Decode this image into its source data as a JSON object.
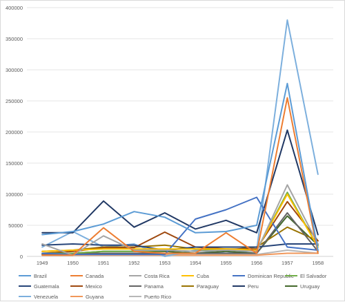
{
  "chart_data": {
    "type": "line",
    "title": "",
    "xlabel": "",
    "ylabel": "",
    "x": [
      "1949",
      "1950",
      "1951",
      "1952",
      "1953",
      "1954",
      "1955",
      "1956",
      "1957",
      "1958"
    ],
    "ylim": [
      0,
      400000
    ],
    "y_ticks": [
      "0",
      "50000",
      "100000",
      "150000",
      "200000",
      "250000",
      "300000",
      "350000",
      "400000"
    ],
    "grid": true,
    "legend_position": "bottom",
    "series": [
      {
        "name": "Brazil",
        "color": "#5b9bd5",
        "values": [
          35000,
          40000,
          52000,
          72000,
          63000,
          38000,
          40000,
          50000,
          278000,
          10000
        ]
      },
      {
        "name": "Canada",
        "color": "#ed7d31",
        "values": [
          2000,
          2000,
          46000,
          8000,
          5000,
          5000,
          38000,
          5000,
          255000,
          5000
        ]
      },
      {
        "name": "Costa Rica",
        "color": "#a5a5a5",
        "values": [
          20000,
          2000,
          33000,
          10000,
          10000,
          8000,
          10000,
          8000,
          115000,
          20000
        ]
      },
      {
        "name": "Cuba",
        "color": "#ffc000",
        "values": [
          8000,
          10000,
          12000,
          12000,
          12000,
          12000,
          12000,
          10000,
          100000,
          15000
        ]
      },
      {
        "name": "Dominican Republic",
        "color": "#4472c4",
        "values": [
          5000,
          3000,
          3000,
          3000,
          3000,
          60000,
          75000,
          95000,
          15000,
          10000
        ]
      },
      {
        "name": "El Salvador",
        "color": "#70ad47",
        "values": [
          5000,
          5000,
          8000,
          8000,
          10000,
          8000,
          12000,
          10000,
          103000,
          15000
        ]
      },
      {
        "name": "Guatemala",
        "color": "#264478",
        "values": [
          18000,
          20000,
          18000,
          18000,
          10000,
          15000,
          15000,
          15000,
          20000,
          20000
        ]
      },
      {
        "name": "Mexico",
        "color": "#9e480e",
        "values": [
          5000,
          8000,
          14000,
          14000,
          39000,
          15000,
          12000,
          12000,
          88000,
          25000
        ]
      },
      {
        "name": "Panama",
        "color": "#636363",
        "values": [
          3000,
          5000,
          5000,
          5000,
          5000,
          5000,
          5000,
          5000,
          70000,
          8000
        ]
      },
      {
        "name": "Paraguay",
        "color": "#997300",
        "values": [
          8000,
          10000,
          15000,
          15000,
          18000,
          12000,
          10000,
          15000,
          47000,
          25000
        ]
      },
      {
        "name": "Peru",
        "color": "#203864",
        "values": [
          38000,
          38000,
          89000,
          47000,
          70000,
          44000,
          58000,
          38000,
          203000,
          35000
        ]
      },
      {
        "name": "Uruguay",
        "color": "#43682b",
        "values": [
          3000,
          5000,
          8000,
          8000,
          8000,
          5000,
          8000,
          5000,
          65000,
          18000
        ]
      },
      {
        "name": "Venezuela",
        "color": "#7cafdd",
        "values": [
          15000,
          40000,
          15000,
          20000,
          0,
          10000,
          5000,
          10000,
          380000,
          132000
        ]
      },
      {
        "name": "Guyana",
        "color": "#f1975a",
        "values": [
          2000,
          2000,
          2000,
          2000,
          2000,
          2000,
          2000,
          2000,
          5000,
          5000
        ]
      },
      {
        "name": "Puerto Rico",
        "color": "#b7b7b7",
        "values": [
          3000,
          3000,
          3000,
          3000,
          3000,
          3000,
          3000,
          3000,
          10000,
          5000
        ]
      }
    ]
  }
}
